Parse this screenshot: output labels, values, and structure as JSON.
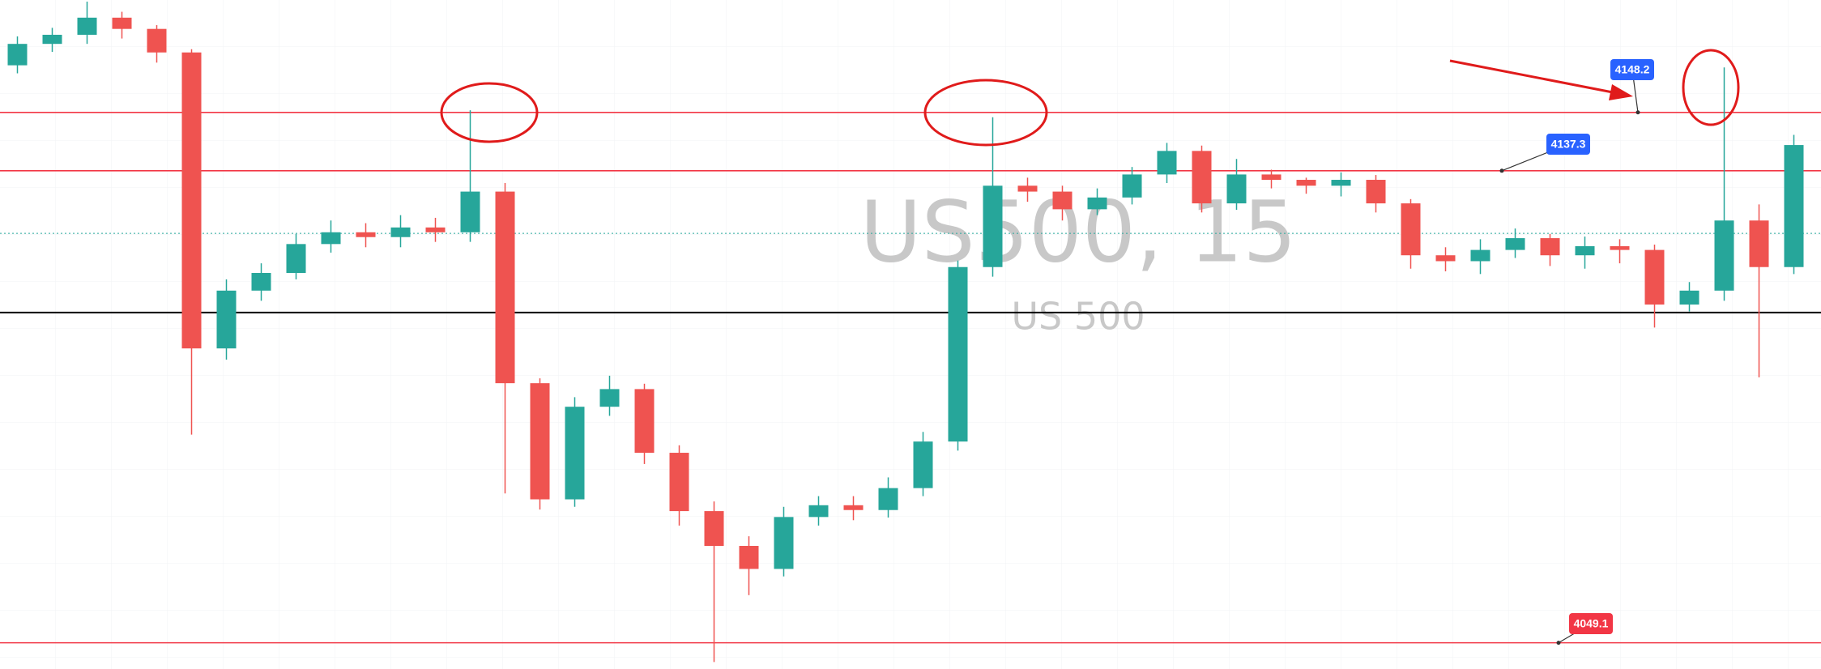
{
  "chart_data": {
    "type": "candlestick",
    "title": "US500, 15",
    "subtitle": "US 500",
    "up_color": "#26a69a",
    "down_color": "#ef5350",
    "ylim": [
      4044.2,
      4169.2
    ],
    "open": [
      4157.0,
      4161.0,
      4162.7,
      4165.9,
      4163.8,
      4159.4,
      4104.1,
      4114.9,
      4118.2,
      4123.6,
      4125.8,
      4124.9,
      4126.7,
      4125.8,
      4133.4,
      4097.6,
      4075.9,
      4093.2,
      4096.5,
      4084.6,
      4073.7,
      4067.2,
      4062.9,
      4072.6,
      4074.8,
      4073.9,
      4078.0,
      4086.7,
      4119.3,
      4134.5,
      4133.4,
      4130.1,
      4132.3,
      4136.6,
      4141.0,
      4131.2,
      4136.6,
      4135.6,
      4134.5,
      4135.6,
      4131.2,
      4121.5,
      4120.4,
      4122.5,
      4124.7,
      4121.5,
      4123.2,
      4122.5,
      4112.3,
      4114.9,
      4128.0,
      4119.3
    ],
    "high": [
      4162.4,
      4164.0,
      4168.9,
      4167.0,
      4164.5,
      4160.0,
      4117.0,
      4120.0,
      4125.5,
      4128.0,
      4127.5,
      4129.0,
      4128.5,
      4148.6,
      4135.0,
      4098.5,
      4095.0,
      4099.0,
      4097.5,
      4086.0,
      4075.5,
      4069.0,
      4074.5,
      4076.5,
      4076.5,
      4080.0,
      4088.5,
      4120.5,
      4147.3,
      4136.0,
      4134.5,
      4134.0,
      4138.0,
      4142.5,
      4142.0,
      4139.5,
      4137.5,
      4136.0,
      4137.0,
      4136.5,
      4132.0,
      4123.0,
      4124.5,
      4126.5,
      4125.5,
      4125.0,
      4124.5,
      4123.5,
      4116.5,
      4156.6,
      4131.0,
      4144.0
    ],
    "low": [
      4155.5,
      4159.5,
      4161.0,
      4162.0,
      4157.5,
      4088.0,
      4102.0,
      4113.0,
      4117.0,
      4122.0,
      4123.0,
      4123.0,
      4124.0,
      4124.0,
      4077.0,
      4074.0,
      4074.5,
      4091.5,
      4082.5,
      4071.0,
      4045.5,
      4058.0,
      4061.5,
      4071.0,
      4072.0,
      4072.5,
      4076.5,
      4085.0,
      4117.5,
      4131.5,
      4128.0,
      4129.0,
      4131.0,
      4135.0,
      4129.5,
      4130.0,
      4134.0,
      4133.0,
      4132.5,
      4129.5,
      4119.0,
      4118.5,
      4118.0,
      4121.0,
      4119.5,
      4119.0,
      4120.0,
      4108.0,
      4111.0,
      4113.0,
      4098.7,
      4118.0
    ],
    "close": [
      4161.0,
      4162.7,
      4165.9,
      4163.8,
      4159.4,
      4104.1,
      4114.9,
      4118.2,
      4123.6,
      4125.8,
      4124.9,
      4126.7,
      4125.8,
      4133.4,
      4097.6,
      4075.9,
      4093.2,
      4096.5,
      4084.6,
      4073.7,
      4067.2,
      4062.9,
      4072.6,
      4074.8,
      4073.9,
      4078.0,
      4086.7,
      4119.3,
      4134.5,
      4133.4,
      4130.1,
      4132.3,
      4136.6,
      4141.0,
      4131.2,
      4136.6,
      4135.6,
      4134.5,
      4135.6,
      4131.2,
      4121.5,
      4120.4,
      4122.5,
      4124.7,
      4121.5,
      4123.2,
      4122.5,
      4112.3,
      4114.9,
      4128.0,
      4119.3,
      4142.1
    ],
    "levels": [
      {
        "value": 4148.2,
        "color": "#f23645",
        "style": "solid",
        "label_color": "#2962ff"
      },
      {
        "value": 4137.3,
        "color": "#f23645",
        "style": "solid",
        "label_color": "#2962ff"
      },
      {
        "value": 4125.6,
        "color": "#26a69a",
        "style": "dotted"
      },
      {
        "value": 4110.8,
        "color": "#000000",
        "style": "solid"
      },
      {
        "value": 4049.1,
        "color": "#f23645",
        "style": "solid",
        "label_color": "#f23645"
      }
    ]
  }
}
